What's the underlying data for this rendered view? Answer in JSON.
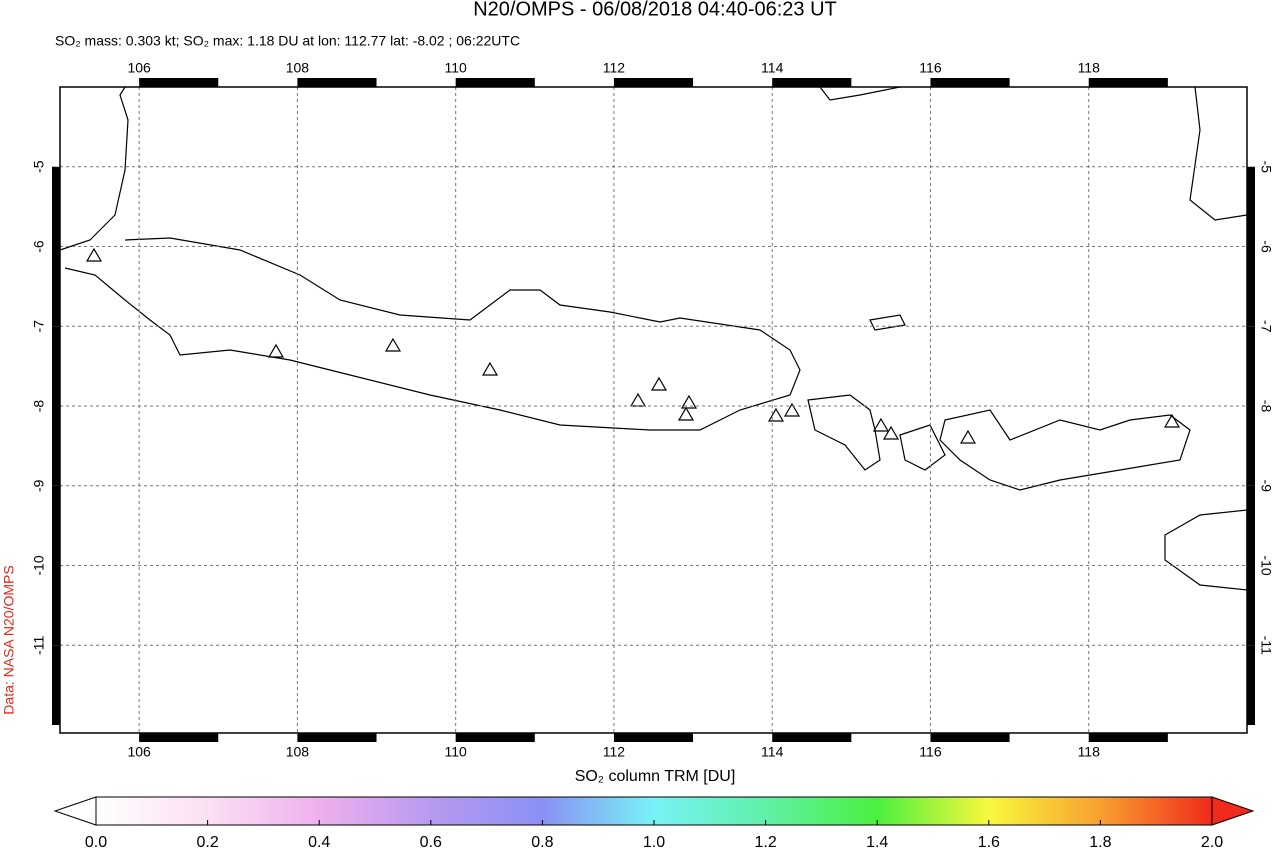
{
  "title": "N20/OMPS - 06/08/2018 04:40-06:23 UT",
  "subtitle": "SO₂ mass: 0.303 kt; SO₂ max: 1.18 DU at lon: 112.77 lat: -8.02 ; 06:22UTC",
  "credit": "Data: NASA N20/OMPS",
  "map": {
    "xlim": [
      105.0,
      120.0
    ],
    "ylim": [
      -12.1,
      -4.0
    ],
    "xticks": [
      106,
      108,
      110,
      112,
      114,
      116,
      118
    ],
    "yticks": [
      -5,
      -6,
      -7,
      -8,
      -9,
      -10,
      -11
    ],
    "grid": true
  },
  "colorbar": {
    "label": "SO₂ column TRM [DU]",
    "lim": [
      0,
      2
    ],
    "ticks": [
      {
        "value": 0,
        "label": "0.0"
      },
      {
        "value": 0.2,
        "label": "0.2"
      },
      {
        "value": 0.4,
        "label": "0.4"
      },
      {
        "value": 0.6,
        "label": "0.6"
      },
      {
        "value": 0.8,
        "label": "0.8"
      },
      {
        "value": 1,
        "label": "1.0"
      },
      {
        "value": 1.2,
        "label": "1.2"
      },
      {
        "value": 1.4,
        "label": "1.4"
      },
      {
        "value": 1.6,
        "label": "1.6"
      },
      {
        "value": 1.8,
        "label": "1.8"
      },
      {
        "value": 2,
        "label": "2.0"
      }
    ]
  }
}
